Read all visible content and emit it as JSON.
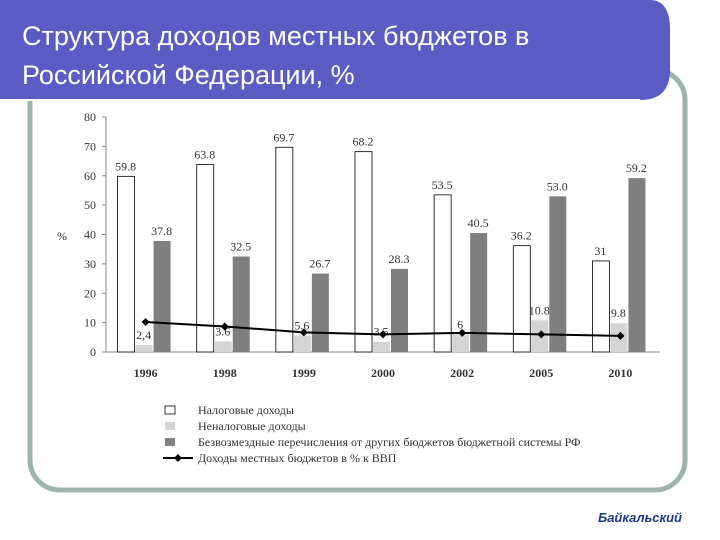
{
  "title": "Структура доходов местных бюджетов в Российской Федерации, %",
  "logo": "Байкальский",
  "chart_data": {
    "type": "bar",
    "y_label": "%",
    "categories": [
      "1996",
      "1998",
      "1999",
      "2000",
      "2002",
      "2005",
      "2010"
    ],
    "ylim": [
      0,
      80
    ],
    "yticks": [
      0,
      10,
      20,
      30,
      40,
      50,
      60,
      70,
      80
    ],
    "series": [
      {
        "name": "Налоговые доходы",
        "color": "#ffffff",
        "values": [
          59.8,
          63.8,
          69.7,
          68.2,
          53.5,
          36.2,
          31
        ],
        "value_labels": [
          "59.8",
          "63.8",
          "69.7",
          "68.2",
          "53.5",
          "36.2",
          "31"
        ]
      },
      {
        "name": "Неналоговые доходы",
        "color": "#d4d4d4",
        "values": [
          2.4,
          3.6,
          5.6,
          3.5,
          6,
          10.8,
          9.8
        ],
        "value_labels": [
          "2,4",
          "3.6",
          "5.6",
          "3.5",
          "6",
          "10.8",
          "9.8"
        ]
      },
      {
        "name": "Безвозмездные перечисления от других бюджетов бюджетной системы РФ",
        "color": "#7f7f7f",
        "values": [
          37.8,
          32.5,
          26.7,
          28.3,
          40.5,
          53.0,
          59.2
        ],
        "value_labels": [
          "37.8",
          "32.5",
          "26.7",
          "28.3",
          "40.5",
          "53.0",
          "59.2"
        ]
      },
      {
        "name": "Доходы местных бюджетов в % к ВВП",
        "color": "#000000",
        "type": "line",
        "values": [
          10.2,
          8.7,
          6.7,
          6.0,
          6.5,
          6.0,
          5.5
        ]
      }
    ]
  }
}
